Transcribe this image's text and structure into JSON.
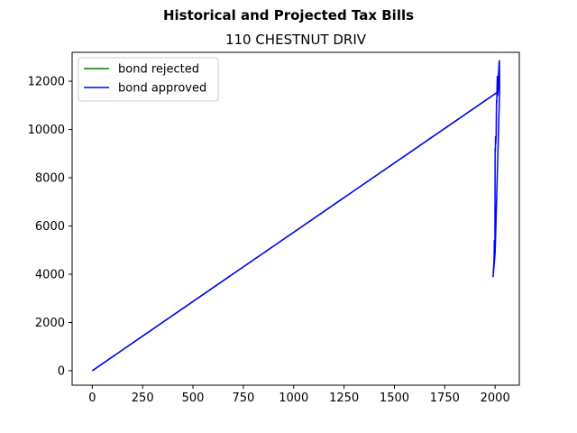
{
  "chart_data": {
    "type": "line",
    "suptitle": "Historical and Projected Tax Bills",
    "title": "110 CHESTNUT DRIV",
    "xlabel": "",
    "ylabel": "",
    "xlim": [
      -100,
      2120
    ],
    "ylim": [
      -600,
      13200
    ],
    "xticks": [
      0,
      250,
      500,
      750,
      1000,
      1250,
      1500,
      1750,
      2000
    ],
    "yticks": [
      0,
      2000,
      4000,
      6000,
      8000,
      10000,
      12000
    ],
    "grid": false,
    "legend_position": "upper left",
    "series": [
      {
        "name": "bond rejected",
        "color": "#008000",
        "x": [
          0,
          2012,
          2013,
          2014,
          2015,
          2016,
          2017,
          2018,
          2019,
          2020,
          2021,
          2022
        ],
        "y": [
          0,
          11550,
          11700,
          11850,
          12000,
          12150,
          12300,
          12450,
          12600,
          12750,
          12850,
          11500
        ]
      },
      {
        "name": "bond approved",
        "color": "#0000ff",
        "x": [
          0,
          2012,
          2013,
          2014,
          2015,
          2016,
          2017,
          2018,
          2019,
          2020,
          2021,
          2022,
          2000,
          1990,
          1995,
          1996,
          1997,
          1998,
          1999,
          2000,
          2001,
          2002,
          2003,
          2004,
          2005,
          2006,
          2007,
          2008,
          2009,
          2010,
          2011,
          2012,
          2020
        ],
        "y": [
          0,
          11550,
          11700,
          11850,
          12000,
          12150,
          12300,
          12450,
          12600,
          12750,
          12850,
          11500,
          4900,
          3900,
          4700,
          5400,
          4900,
          5100,
          5200,
          9200,
          9100,
          9700,
          9400,
          9600,
          9700,
          10600,
          11200,
          11100,
          11400,
          11900,
          12200,
          11400,
          12300
        ]
      }
    ]
  }
}
